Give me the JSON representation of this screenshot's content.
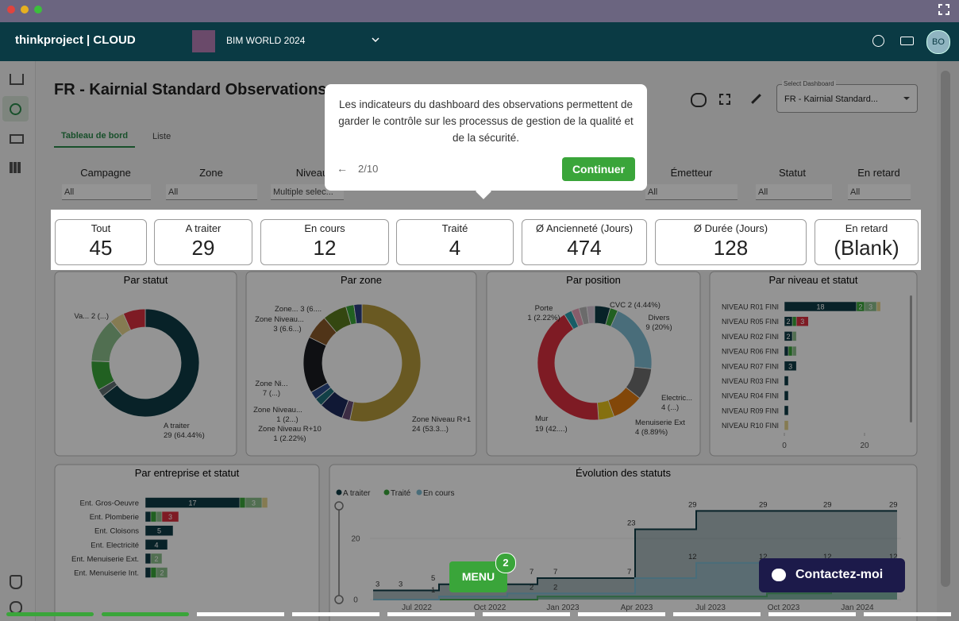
{
  "header": {
    "brand": "thinkproject | CLOUD",
    "project": "BIM WORLD 2024",
    "avatar": "BO"
  },
  "page": {
    "title": "FR - Kairnial Standard Observations",
    "tabs": [
      "Tableau de bord",
      "Liste"
    ],
    "select_label": "Select Dashboard",
    "select_value": "FR - Kairnial Standard..."
  },
  "filters": [
    {
      "label": "Campagne",
      "value": "All"
    },
    {
      "label": "Zone",
      "value": "All"
    },
    {
      "label": "Niveau",
      "value": "Multiple selec..."
    },
    {
      "label": "Émetteur",
      "value": "All"
    },
    {
      "label": "Statut",
      "value": "All"
    },
    {
      "label": "En retard",
      "value": "All"
    }
  ],
  "kpis": [
    {
      "label": "Tout",
      "value": 45
    },
    {
      "label": "A traiter",
      "value": 29
    },
    {
      "label": "En cours",
      "value": 12
    },
    {
      "label": "Traité",
      "value": 4
    },
    {
      "label": "Ø Ancienneté (Jours)",
      "value": 474
    },
    {
      "label": "Ø Durée (Jours)",
      "value": 128
    },
    {
      "label": "En retard",
      "value": "(Blank)"
    }
  ],
  "donuts": [
    {
      "title": "Par statut",
      "segments": [
        {
          "value": 29,
          "color": "#0e3c46"
        },
        {
          "value": 1,
          "color": "#5f6f72"
        },
        {
          "value": 4,
          "color": "#3aa53a"
        },
        {
          "value": 6,
          "color": "#8cc08c"
        },
        {
          "value": 2,
          "color": "#e6d48e"
        },
        {
          "value": 3,
          "color": "#d9303f"
        }
      ],
      "labels": [
        {
          "lines": [
            "Va... 2 (...)"
          ]
        },
        {
          "lines": [
            "A traiter",
            "29 (64.44%)"
          ]
        }
      ]
    },
    {
      "title": "Par zone",
      "segments": [
        {
          "value": 24,
          "color": "#b59a3c"
        },
        {
          "value": 1,
          "color": "#6a4f78"
        },
        {
          "value": 3,
          "color": "#1c2a5c"
        },
        {
          "value": 1,
          "color": "#1f6f7a"
        },
        {
          "value": 1,
          "color": "#2b4a8a"
        },
        {
          "value": 7,
          "color": "#1a1d22"
        },
        {
          "value": 3,
          "color": "#8a5a2a"
        },
        {
          "value": 3,
          "color": "#5b7a1e"
        },
        {
          "value": 1,
          "color": "#3aa53a"
        },
        {
          "value": 1,
          "color": "#2c3e80"
        }
      ],
      "labels": [
        {
          "lines": [
            "Zone... 3 (6...."
          ]
        },
        {
          "lines": [
            "Zone Niveau...",
            "3 (6.6...)"
          ]
        },
        {
          "lines": [
            "Zone Ni...",
            "7 (...)"
          ]
        },
        {
          "lines": [
            "Zone Niveau...",
            "1 (2...)"
          ]
        },
        {
          "lines": [
            "Zone Niveau R+10",
            "1 (2.22%)"
          ]
        },
        {
          "lines": [
            "Zone Niveau R+1",
            "24 (53.3...)"
          ]
        }
      ]
    },
    {
      "title": "Par position",
      "segments": [
        {
          "value": 2,
          "color": "#0e3c46"
        },
        {
          "value": 1,
          "color": "#3aa53a"
        },
        {
          "value": 9,
          "color": "#7fbcd2"
        },
        {
          "value": 4,
          "color": "#6f6f6f"
        },
        {
          "value": 4,
          "color": "#e07b10"
        },
        {
          "value": 2,
          "color": "#e6c21a"
        },
        {
          "value": 19,
          "color": "#d9303f"
        },
        {
          "value": 1,
          "color": "#2aa0b0"
        },
        {
          "value": 1,
          "color": "#e8a0b8"
        },
        {
          "value": 1,
          "color": "#b8b8b8"
        },
        {
          "value": 1,
          "color": "#d8c8d8"
        }
      ],
      "labels": [
        {
          "lines": [
            "CVC 2 (4.44%)"
          ]
        },
        {
          "lines": [
            "Divers",
            "9 (20%)"
          ]
        },
        {
          "lines": [
            "Porte",
            "1 (2.22%)"
          ]
        },
        {
          "lines": [
            "Electric...",
            "4 (...)"
          ]
        },
        {
          "lines": [
            "Menuiserie Ext",
            "4 (8.89%)"
          ]
        },
        {
          "lines": [
            "Mur",
            "19 (42....)"
          ]
        }
      ]
    }
  ],
  "bars": [
    {
      "title": "Par niveau et statut",
      "xticks": [
        0,
        20
      ],
      "rows": [
        {
          "label": "NIVEAU R01 FINI",
          "segments": [
            {
              "value": 18,
              "color": "#0e3c46"
            },
            {
              "value": 2,
              "color": "#3aa53a"
            },
            {
              "value": 3,
              "color": "#8cc08c"
            },
            {
              "value": 1,
              "color": "#e6d48e"
            }
          ]
        },
        {
          "label": "NIVEAU R05 FINI",
          "segments": [
            {
              "value": 2,
              "color": "#0e3c46"
            },
            {
              "value": 1,
              "color": "#3aa53a"
            },
            {
              "value": 3,
              "color": "#d9303f"
            }
          ]
        },
        {
          "label": "NIVEAU R02 FINI",
          "segments": [
            {
              "value": 2,
              "color": "#0e3c46"
            },
            {
              "value": 1,
              "color": "#8cc08c"
            }
          ]
        },
        {
          "label": "NIVEAU R06 FINI",
          "segments": [
            {
              "value": 1,
              "color": "#0e3c46"
            },
            {
              "value": 1,
              "color": "#3aa53a"
            },
            {
              "value": 1,
              "color": "#8cc08c"
            }
          ]
        },
        {
          "label": "NIVEAU R07 FINI",
          "segments": [
            {
              "value": 3,
              "color": "#0e3c46"
            }
          ]
        },
        {
          "label": "NIVEAU R03 FINI",
          "segments": [
            {
              "value": 1,
              "color": "#0e3c46"
            }
          ]
        },
        {
          "label": "NIVEAU R04 FINI",
          "segments": [
            {
              "value": 1,
              "color": "#0e3c46"
            }
          ]
        },
        {
          "label": "NIVEAU R09 FINI",
          "segments": [
            {
              "value": 1,
              "color": "#0e3c46"
            }
          ]
        },
        {
          "label": "NIVEAU R10 FINI",
          "segments": [
            {
              "value": 1,
              "color": "#e6d48e"
            }
          ]
        }
      ]
    },
    {
      "title": "Par entreprise et statut",
      "xticks": [],
      "rows": [
        {
          "label": "Ent. Gros-Oeuvre",
          "segments": [
            {
              "value": 17,
              "color": "#0e3c46"
            },
            {
              "value": 1,
              "color": "#3aa53a"
            },
            {
              "value": 3,
              "color": "#8cc08c"
            },
            {
              "value": 1,
              "color": "#e6d48e"
            }
          ]
        },
        {
          "label": "Ent. Plomberie",
          "segments": [
            {
              "value": 1,
              "color": "#0e3c46"
            },
            {
              "value": 1,
              "color": "#3aa53a"
            },
            {
              "value": 1,
              "color": "#8cc08c"
            },
            {
              "value": 3,
              "color": "#d9303f"
            }
          ]
        },
        {
          "label": "Ent. Cloisons",
          "segments": [
            {
              "value": 5,
              "color": "#0e3c46"
            }
          ]
        },
        {
          "label": "Ent. Electricité",
          "segments": [
            {
              "value": 4,
              "color": "#0e3c46"
            }
          ]
        },
        {
          "label": "Ent. Menuiserie Ext.",
          "segments": [
            {
              "value": 1,
              "color": "#0e3c46"
            },
            {
              "value": 2,
              "color": "#8cc08c"
            }
          ]
        },
        {
          "label": "Ent. Menuiserie Int.",
          "segments": [
            {
              "value": 1,
              "color": "#0e3c46"
            },
            {
              "value": 1,
              "color": "#3aa53a"
            },
            {
              "value": 2,
              "color": "#8cc08c"
            }
          ]
        }
      ]
    }
  ],
  "evolution": {
    "title": "Évolution des statuts",
    "yticks": [
      0,
      20
    ],
    "xticks": [
      "Jul 2022",
      "Oct 2022",
      "Jan 2023",
      "Apr 2023",
      "Jul 2023",
      "Oct 2023",
      "Jan 2024"
    ],
    "series": [
      {
        "name": "A traiter",
        "color": "#0e3c46",
        "values": [
          3,
          3,
          5,
          5,
          7,
          7,
          23,
          29,
          29,
          29,
          29
        ]
      },
      {
        "name": "Traité",
        "color": "#3aa53a",
        "values": [
          0,
          0,
          0,
          0,
          1,
          1,
          1,
          1,
          2,
          3,
          4
        ]
      },
      {
        "name": "En cours",
        "color": "#7fbcd2",
        "values": [
          0,
          0,
          1,
          2,
          2,
          2,
          7,
          12,
          12,
          12,
          12
        ]
      }
    ]
  },
  "tooltip": {
    "text": "Les indicateurs du dashboard des observations permettent de garder le contrôle sur les processus de gestion de la qualité et de la sécurité.",
    "step": "2/10",
    "button": "Continuer"
  },
  "menu": {
    "label": "MENU",
    "badge": 2
  },
  "contact": "Contactez-moi"
}
